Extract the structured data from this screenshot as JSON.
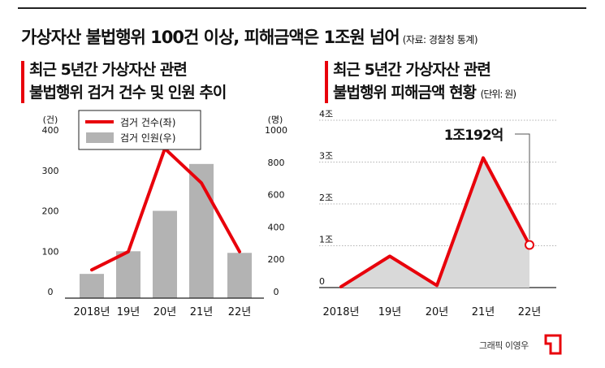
{
  "headline": {
    "title": "가상자산 불법행위 100건 이상, 피해금액은 1조원 넘어",
    "source": "(자료: 경찰청 통계)"
  },
  "left_chart_title": {
    "line1": "최근 5년간 가상자산 관련",
    "line2": "불법행위 검거 건수 및 인원 추이"
  },
  "right_chart_title": {
    "line1": "최근 5년간 가상자산 관련",
    "line2": "불법행위 피해금액 현황",
    "unit": "(단위: 원)"
  },
  "credit": "그래픽 이영우",
  "colors": {
    "accent": "#e8000b",
    "bar": "#b3b3b3",
    "area": "#d9d9d9",
    "grid": "#9a9a9a"
  },
  "chart_data": [
    {
      "type": "bar",
      "categories": [
        "2018년",
        "19년",
        "20년",
        "21년",
        "22년"
      ],
      "series": [
        {
          "name": "검거 건수(좌)",
          "type": "line",
          "axis": "left",
          "values": [
            70,
            115,
            370,
            285,
            115
          ]
        },
        {
          "name": "검거 인원(우)",
          "type": "bar",
          "axis": "right",
          "values": [
            150,
            290,
            540,
            830,
            280
          ]
        }
      ],
      "left_axis": {
        "unit": "(건)",
        "ticks": [
          "0",
          "100",
          "200",
          "300",
          "400"
        ],
        "ylim": [
          0,
          400
        ]
      },
      "right_axis": {
        "unit": "(명)",
        "ticks": [
          "0",
          "200",
          "400",
          "600",
          "800",
          "1000"
        ],
        "ylim": [
          0,
          1000
        ]
      },
      "legend": "top-left",
      "grid": false
    },
    {
      "type": "area",
      "categories": [
        "2018년",
        "19년",
        "20년",
        "21년",
        "22년"
      ],
      "values": [
        0.02,
        0.75,
        0.05,
        3.1,
        1.0192
      ],
      "y_ticks": [
        "0",
        "1조",
        "2조",
        "3조",
        "4조"
      ],
      "ylim": [
        0,
        4
      ],
      "annotation": "1조192억",
      "grid": true
    }
  ]
}
